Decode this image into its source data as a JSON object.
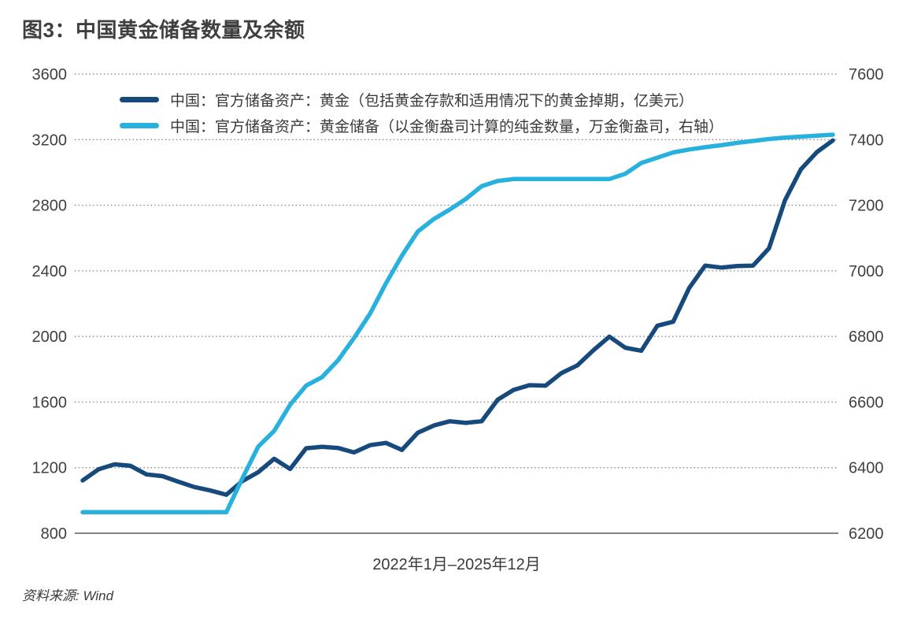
{
  "header": {
    "title": "图3：中国黄金储备数量及余额"
  },
  "legend": [
    {
      "label": "中国：官方储备资产：黄金（包括黄金存款和适用情况下的黄金掉期，亿美元）",
      "color": "#164a7c"
    },
    {
      "label": "中国：官方储备资产：黄金储备（以金衡盎司计算的纯金数量，万金衡盎司，右轴）",
      "color": "#29b1de"
    }
  ],
  "footer": {
    "source": "资料来源: Wind"
  },
  "colors": {
    "navy_line": "#164a7c",
    "cyan_line": "#29b1de",
    "gridline": "#767676",
    "axis_line": "#5a5a5a",
    "tick_text": "#404040"
  },
  "chart_data": {
    "type": "line",
    "title": "图3：中国黄金储备数量及余额",
    "x_axis": {
      "label": "2022年1月–2025年12月",
      "start": "2022年1月",
      "end": "2025年12月",
      "period": "monthly",
      "points": 48
    },
    "left_axis": {
      "range": [
        800,
        3600
      ],
      "ticks": [
        800,
        1200,
        1600,
        2000,
        2400,
        2800,
        3200,
        3600
      ]
    },
    "right_axis": {
      "range": [
        6200,
        7600
      ],
      "ticks": [
        6200,
        6400,
        6600,
        6800,
        7000,
        7200,
        7400,
        7600
      ]
    },
    "grid": "dotted-horizontal",
    "legend_position": "top-left",
    "series": [
      {
        "name": "中国：官方储备资产：黄金（包括黄金存款和适用情况下的黄金掉期，亿美元）",
        "axis": "left",
        "color": "#164a7c",
        "values": [
          1122,
          1190,
          1220,
          1211,
          1159,
          1148,
          1114,
          1082,
          1061,
          1035,
          1118,
          1172,
          1254,
          1192,
          1318,
          1327,
          1320,
          1293,
          1337,
          1351,
          1308,
          1413,
          1457,
          1483,
          1473,
          1483,
          1614,
          1674,
          1703,
          1700,
          1777,
          1824,
          1916,
          1999,
          1931,
          1913,
          2065,
          2090,
          2295,
          2432,
          2420,
          2429,
          2432,
          2537,
          2830,
          3019,
          3124,
          3195
        ]
      },
      {
        "name": "中国：官方储备资产：黄金储备（以金衡盎司计算的纯金数量，万金衡盎司，右轴）",
        "axis": "right",
        "color": "#29b1de",
        "values": [
          6264,
          6264,
          6264,
          6264,
          6264,
          6264,
          6264,
          6264,
          6264,
          6264,
          6367,
          6464,
          6512,
          6592,
          6650,
          6676,
          6727,
          6795,
          6869,
          6962,
          7046,
          7120,
          7158,
          7187,
          7219,
          7258,
          7274,
          7280,
          7280,
          7280,
          7280,
          7280,
          7280,
          7280,
          7296,
          7329,
          7345,
          7361,
          7370,
          7377,
          7383,
          7390,
          7396,
          7402,
          7406,
          7409,
          7412,
          7415
        ]
      }
    ]
  }
}
